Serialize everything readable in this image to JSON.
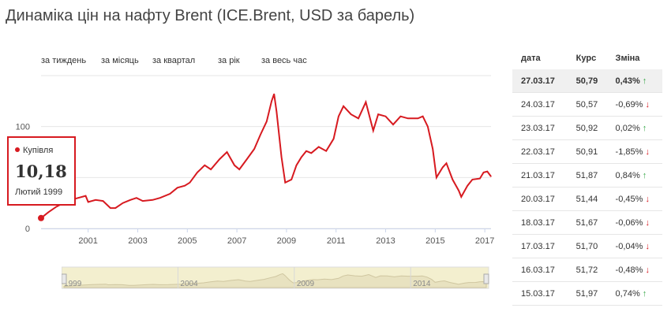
{
  "title": "Динаміка цін на нафту Brent (ICE.Brent, USD за барель)",
  "periods": [
    "за тиждень",
    "за місяць",
    "за квартал",
    "за рік",
    "за весь час"
  ],
  "tooltip": {
    "label": "Купівля",
    "value": "10,18",
    "date": "Лютий 1999"
  },
  "colors": {
    "line": "#d71a20",
    "navigator_fill": "#f3efcf",
    "up": "#3aa84a",
    "down": "#d71a20"
  },
  "chart_data": {
    "type": "line",
    "title": "Динаміка цін на нафту Brent (ICE.Brent, USD за барель)",
    "xlabel": "",
    "ylabel": "",
    "ylim": [
      0,
      150
    ],
    "xlim": [
      1999.1,
      2017.25
    ],
    "y_ticks": [
      "0",
      "100"
    ],
    "x_ticks": [
      "2001",
      "2003",
      "2005",
      "2007",
      "2009",
      "2011",
      "2013",
      "2015",
      "2017"
    ],
    "navigator_ticks": [
      "1999",
      "2004",
      "2009",
      "2014"
    ],
    "grid": true,
    "series": [
      {
        "name": "Купівля",
        "points": [
          [
            1999.1,
            10.2
          ],
          [
            1999.4,
            16
          ],
          [
            1999.7,
            21
          ],
          [
            2000.0,
            25
          ],
          [
            2000.3,
            28
          ],
          [
            2000.6,
            30
          ],
          [
            2000.9,
            32
          ],
          [
            2001.0,
            26
          ],
          [
            2001.3,
            28
          ],
          [
            2001.6,
            27
          ],
          [
            2001.9,
            20
          ],
          [
            2002.1,
            20
          ],
          [
            2002.4,
            25
          ],
          [
            2002.7,
            28
          ],
          [
            2002.95,
            30
          ],
          [
            2003.2,
            27
          ],
          [
            2003.6,
            28
          ],
          [
            2003.9,
            30
          ],
          [
            2004.3,
            34
          ],
          [
            2004.6,
            40
          ],
          [
            2004.9,
            42
          ],
          [
            2005.1,
            45
          ],
          [
            2005.4,
            55
          ],
          [
            2005.7,
            62
          ],
          [
            2005.95,
            58
          ],
          [
            2006.3,
            68
          ],
          [
            2006.6,
            75
          ],
          [
            2006.9,
            62
          ],
          [
            2007.1,
            58
          ],
          [
            2007.4,
            68
          ],
          [
            2007.7,
            78
          ],
          [
            2007.95,
            92
          ],
          [
            2008.2,
            105
          ],
          [
            2008.4,
            125
          ],
          [
            2008.5,
            132
          ],
          [
            2008.6,
            115
          ],
          [
            2008.8,
            70
          ],
          [
            2008.95,
            45
          ],
          [
            2009.2,
            48
          ],
          [
            2009.4,
            62
          ],
          [
            2009.6,
            70
          ],
          [
            2009.8,
            76
          ],
          [
            2010.0,
            74
          ],
          [
            2010.3,
            80
          ],
          [
            2010.6,
            76
          ],
          [
            2010.9,
            88
          ],
          [
            2011.1,
            110
          ],
          [
            2011.3,
            120
          ],
          [
            2011.6,
            112
          ],
          [
            2011.9,
            108
          ],
          [
            2012.2,
            124
          ],
          [
            2012.5,
            96
          ],
          [
            2012.7,
            112
          ],
          [
            2013.0,
            110
          ],
          [
            2013.3,
            102
          ],
          [
            2013.6,
            110
          ],
          [
            2013.9,
            108
          ],
          [
            2014.3,
            108
          ],
          [
            2014.5,
            110
          ],
          [
            2014.7,
            100
          ],
          [
            2014.9,
            78
          ],
          [
            2015.05,
            50
          ],
          [
            2015.3,
            60
          ],
          [
            2015.45,
            64
          ],
          [
            2015.7,
            48
          ],
          [
            2015.95,
            37
          ],
          [
            2016.05,
            31
          ],
          [
            2016.3,
            42
          ],
          [
            2016.5,
            48
          ],
          [
            2016.8,
            49
          ],
          [
            2016.95,
            55
          ],
          [
            2017.1,
            56
          ],
          [
            2017.25,
            51
          ]
        ]
      }
    ]
  },
  "table": {
    "headers": [
      "дата",
      "Курс",
      "Зміна"
    ],
    "rows": [
      {
        "date": "27.03.17",
        "rate": "50,79",
        "change": "0,43%",
        "dir": "up"
      },
      {
        "date": "24.03.17",
        "rate": "50,57",
        "change": "-0,69%",
        "dir": "down"
      },
      {
        "date": "23.03.17",
        "rate": "50,92",
        "change": "0,02%",
        "dir": "up"
      },
      {
        "date": "22.03.17",
        "rate": "50,91",
        "change": "-1,85%",
        "dir": "down"
      },
      {
        "date": "21.03.17",
        "rate": "51,87",
        "change": "0,84%",
        "dir": "up"
      },
      {
        "date": "20.03.17",
        "rate": "51,44",
        "change": "-0,45%",
        "dir": "down"
      },
      {
        "date": "18.03.17",
        "rate": "51,67",
        "change": "-0,06%",
        "dir": "down"
      },
      {
        "date": "17.03.17",
        "rate": "51,70",
        "change": "-0,04%",
        "dir": "down"
      },
      {
        "date": "16.03.17",
        "rate": "51,72",
        "change": "-0,48%",
        "dir": "down"
      },
      {
        "date": "15.03.17",
        "rate": "51,97",
        "change": "0,74%",
        "dir": "up"
      }
    ]
  }
}
